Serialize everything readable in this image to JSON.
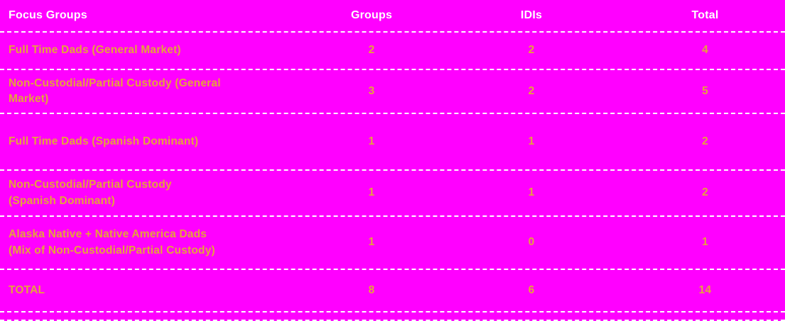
{
  "colors": {
    "background": "#FF00FF",
    "header_text": "#FFFFFF",
    "body_text": "#E5A23C",
    "divider": "#FFFFFF"
  },
  "table": {
    "headers": [
      "Focus Groups",
      "Groups",
      "IDIs",
      "Total"
    ],
    "rows": [
      {
        "label": "Full Time Dads (General Market)",
        "groups": "2",
        "idis": "2",
        "total": "4"
      },
      {
        "label": "Non-Custodial/Partial Custody (General\nMarket)",
        "groups": "3",
        "idis": "2",
        "total": "5"
      },
      {
        "label": "Full Time Dads (Spanish Dominant)",
        "groups": "1",
        "idis": "1",
        "total": "2"
      },
      {
        "label": "Non-Custodial/Partial Custody\n(Spanish Dominant)",
        "groups": "1",
        "idis": "1",
        "total": "2"
      },
      {
        "label": "Alaska Native + Native America Dads\n(Mix of Non-Custodial/Partial Custody)",
        "groups": "1",
        "idis": "0",
        "total": "1"
      },
      {
        "label": "TOTAL",
        "groups": "8",
        "idis": "6",
        "total": "14"
      }
    ]
  },
  "chart_data": {
    "type": "table",
    "title": "Focus Groups",
    "columns": [
      "Focus Groups",
      "Groups",
      "IDIs",
      "Total"
    ],
    "rows": [
      [
        "Full Time Dads (General Market)",
        2,
        2,
        4
      ],
      [
        "Non-Custodial/Partial Custody (General Market)",
        3,
        2,
        5
      ],
      [
        "Full Time Dads (Spanish Dominant)",
        1,
        1,
        2
      ],
      [
        "Non-Custodial/Partial Custody (Spanish Dominant)",
        1,
        1,
        2
      ],
      [
        "Alaska Native + Native America Dads (Mix of Non-Custodial/Partial Custody)",
        1,
        0,
        1
      ],
      [
        "TOTAL",
        8,
        6,
        14
      ]
    ]
  }
}
